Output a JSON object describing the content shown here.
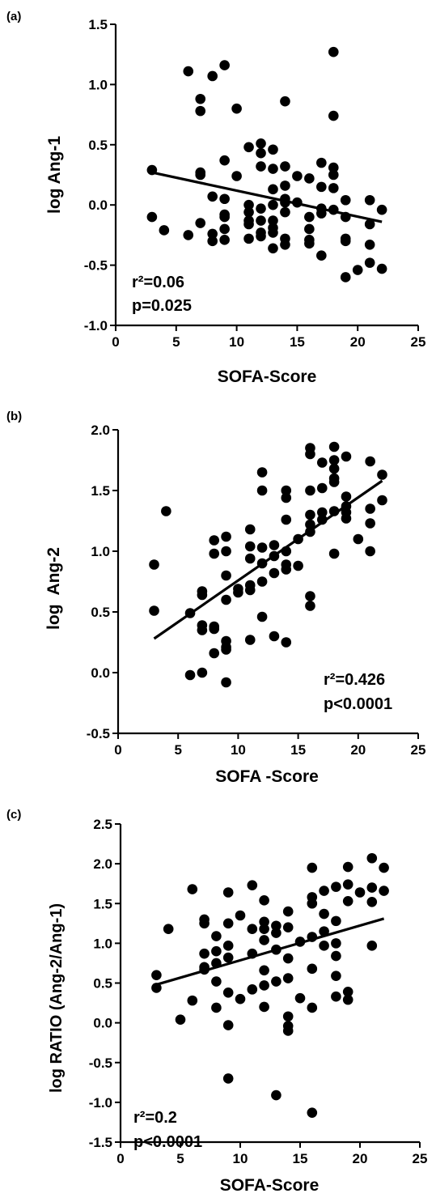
{
  "chart_data": [
    {
      "type": "scatter",
      "panel_label": "(a)",
      "xlabel": "SOFA-Score",
      "ylabel": "log Ang-1",
      "xlim": [
        0,
        25
      ],
      "ylim": [
        -1.0,
        1.5
      ],
      "xticks": [
        "0",
        "5",
        "10",
        "15",
        "20",
        "25"
      ],
      "yticks": [
        "-1.0",
        "-0.5",
        "0.0",
        "0.5",
        "1.0",
        "1.5"
      ],
      "annotations": [
        "r²=0.06",
        "p=0.025"
      ],
      "grid": false,
      "legend": "none",
      "regression": {
        "x": [
          3,
          22
        ],
        "y": [
          0.27,
          -0.14
        ]
      },
      "points": [
        [
          3,
          0.29
        ],
        [
          3,
          -0.1
        ],
        [
          4,
          -0.21
        ],
        [
          6,
          1.11
        ],
        [
          6,
          -0.25
        ],
        [
          7,
          0.88
        ],
        [
          7,
          0.78
        ],
        [
          7,
          0.27
        ],
        [
          7,
          0.25
        ],
        [
          7,
          -0.15
        ],
        [
          8,
          1.07
        ],
        [
          8,
          0.07
        ],
        [
          8,
          -0.24
        ],
        [
          8,
          -0.3
        ],
        [
          9,
          1.16
        ],
        [
          9,
          0.37
        ],
        [
          9,
          0.05
        ],
        [
          9,
          -0.08
        ],
        [
          9,
          -0.1
        ],
        [
          9,
          -0.2
        ],
        [
          9,
          -0.29
        ],
        [
          10,
          0.8
        ],
        [
          10,
          0.24
        ],
        [
          11,
          0.48
        ],
        [
          11,
          0.0
        ],
        [
          11,
          -0.06
        ],
        [
          11,
          -0.13
        ],
        [
          11,
          -0.16
        ],
        [
          11,
          -0.28
        ],
        [
          12,
          0.51
        ],
        [
          12,
          0.43
        ],
        [
          12,
          0.32
        ],
        [
          12,
          -0.03
        ],
        [
          12,
          -0.13
        ],
        [
          12,
          -0.23
        ],
        [
          12,
          -0.26
        ],
        [
          13,
          0.46
        ],
        [
          13,
          0.3
        ],
        [
          13,
          0.13
        ],
        [
          13,
          0.0
        ],
        [
          13,
          -0.13
        ],
        [
          13,
          -0.19
        ],
        [
          13,
          -0.23
        ],
        [
          13,
          -0.36
        ],
        [
          14,
          0.86
        ],
        [
          14,
          0.32
        ],
        [
          14,
          0.16
        ],
        [
          14,
          0.05
        ],
        [
          14,
          0.02
        ],
        [
          14,
          -0.06
        ],
        [
          14,
          -0.28
        ],
        [
          14,
          -0.33
        ],
        [
          15,
          0.24
        ],
        [
          15,
          0.02
        ],
        [
          16,
          0.22
        ],
        [
          16,
          -0.1
        ],
        [
          16,
          -0.2
        ],
        [
          16,
          -0.29
        ],
        [
          16,
          -0.32
        ],
        [
          17,
          0.35
        ],
        [
          17,
          0.15
        ],
        [
          17,
          -0.03
        ],
        [
          17,
          -0.07
        ],
        [
          17,
          -0.42
        ],
        [
          18,
          1.27
        ],
        [
          18,
          0.74
        ],
        [
          18,
          0.31
        ],
        [
          18,
          0.25
        ],
        [
          18,
          0.14
        ],
        [
          18,
          -0.04
        ],
        [
          19,
          0.04
        ],
        [
          19,
          -0.1
        ],
        [
          19,
          -0.28
        ],
        [
          19,
          -0.3
        ],
        [
          19,
          -0.6
        ],
        [
          20,
          -0.54
        ],
        [
          21,
          0.04
        ],
        [
          21,
          -0.16
        ],
        [
          21,
          -0.33
        ],
        [
          21,
          -0.48
        ],
        [
          22,
          -0.04
        ],
        [
          22,
          -0.53
        ]
      ]
    },
    {
      "type": "scatter",
      "panel_label": "(b)",
      "xlabel": "SOFA -Score",
      "ylabel": "log  Ang-2",
      "xlim": [
        0,
        25
      ],
      "ylim": [
        -0.5,
        2.0
      ],
      "xticks": [
        "0",
        "5",
        "10",
        "15",
        "20",
        "25"
      ],
      "yticks": [
        "-0.5",
        "0.0",
        "0.5",
        "1.0",
        "1.5",
        "2.0"
      ],
      "annotations": [
        "r²=0.426",
        "p<0.0001"
      ],
      "grid": false,
      "legend": "none",
      "regression": {
        "x": [
          3,
          22
        ],
        "y": [
          0.28,
          1.58
        ]
      },
      "points": [
        [
          3,
          0.89
        ],
        [
          3,
          0.51
        ],
        [
          4,
          1.33
        ],
        [
          6,
          0.49
        ],
        [
          6,
          -0.02
        ],
        [
          7,
          0.67
        ],
        [
          7,
          0.64
        ],
        [
          7,
          0.39
        ],
        [
          7,
          0.35
        ],
        [
          7,
          0.0
        ],
        [
          8,
          1.09
        ],
        [
          8,
          0.98
        ],
        [
          8,
          0.38
        ],
        [
          8,
          0.36
        ],
        [
          8,
          0.16
        ],
        [
          9,
          1.12
        ],
        [
          9,
          1.0
        ],
        [
          9,
          0.8
        ],
        [
          9,
          0.6
        ],
        [
          9,
          0.26
        ],
        [
          9,
          0.21
        ],
        [
          9,
          0.19
        ],
        [
          9,
          -0.08
        ],
        [
          10,
          0.69
        ],
        [
          10,
          0.66
        ],
        [
          11,
          1.18
        ],
        [
          11,
          1.04
        ],
        [
          11,
          0.94
        ],
        [
          11,
          0.72
        ],
        [
          11,
          0.68
        ],
        [
          11,
          0.27
        ],
        [
          12,
          1.65
        ],
        [
          12,
          1.5
        ],
        [
          12,
          1.03
        ],
        [
          12,
          0.9
        ],
        [
          12,
          0.75
        ],
        [
          12,
          0.46
        ],
        [
          13,
          1.05
        ],
        [
          13,
          0.96
        ],
        [
          13,
          0.82
        ],
        [
          13,
          0.3
        ],
        [
          14,
          1.5
        ],
        [
          14,
          1.44
        ],
        [
          14,
          1.26
        ],
        [
          14,
          1.0
        ],
        [
          14,
          0.89
        ],
        [
          14,
          0.85
        ],
        [
          14,
          0.25
        ],
        [
          15,
          1.1
        ],
        [
          15,
          0.88
        ],
        [
          16,
          1.85
        ],
        [
          16,
          1.8
        ],
        [
          16,
          1.5
        ],
        [
          16,
          1.3
        ],
        [
          16,
          1.22
        ],
        [
          16,
          1.16
        ],
        [
          16,
          0.63
        ],
        [
          16,
          0.55
        ],
        [
          17,
          1.73
        ],
        [
          17,
          1.52
        ],
        [
          17,
          1.32
        ],
        [
          17,
          1.26
        ],
        [
          18,
          1.86
        ],
        [
          18,
          1.75
        ],
        [
          18,
          1.68
        ],
        [
          18,
          1.6
        ],
        [
          18,
          1.57
        ],
        [
          18,
          1.33
        ],
        [
          18,
          0.98
        ],
        [
          19,
          1.78
        ],
        [
          19,
          1.45
        ],
        [
          19,
          1.37
        ],
        [
          19,
          1.32
        ],
        [
          19,
          1.27
        ],
        [
          20,
          1.1
        ],
        [
          21,
          1.74
        ],
        [
          21,
          1.35
        ],
        [
          21,
          1.23
        ],
        [
          21,
          1.0
        ],
        [
          22,
          1.63
        ],
        [
          22,
          1.42
        ]
      ]
    },
    {
      "type": "scatter",
      "panel_label": "(c)",
      "xlabel": "SOFA-Score",
      "ylabel": "log RATIO (Ang-2/Ang-1)",
      "xlim": [
        0,
        25
      ],
      "ylim": [
        -1.5,
        2.5
      ],
      "xticks": [
        "0",
        "5",
        "10",
        "15",
        "20",
        "25"
      ],
      "yticks": [
        "-1.5",
        "-1.0",
        "-0.5",
        "0.0",
        "0.5",
        "1.0",
        "1.5",
        "2.0",
        "2.5"
      ],
      "annotations": [
        "r²=0.2",
        "p<0.0001"
      ],
      "grid": false,
      "legend": "none",
      "regression": {
        "x": [
          3,
          22
        ],
        "y": [
          0.48,
          1.31
        ]
      },
      "points": [
        [
          3,
          0.6
        ],
        [
          3,
          0.44
        ],
        [
          4,
          1.18
        ],
        [
          5,
          0.04
        ],
        [
          6,
          1.68
        ],
        [
          6,
          0.28
        ],
        [
          7,
          1.3
        ],
        [
          7,
          1.25
        ],
        [
          7,
          0.87
        ],
        [
          7,
          0.7
        ],
        [
          7,
          0.67
        ],
        [
          8,
          1.09
        ],
        [
          8,
          0.9
        ],
        [
          8,
          0.75
        ],
        [
          8,
          0.52
        ],
        [
          8,
          0.19
        ],
        [
          9,
          1.64
        ],
        [
          9,
          1.25
        ],
        [
          9,
          0.97
        ],
        [
          9,
          0.82
        ],
        [
          9,
          0.38
        ],
        [
          9,
          -0.03
        ],
        [
          9,
          -0.7
        ],
        [
          10,
          1.35
        ],
        [
          10,
          0.3
        ],
        [
          11,
          1.73
        ],
        [
          11,
          1.18
        ],
        [
          11,
          0.87
        ],
        [
          11,
          0.42
        ],
        [
          12,
          1.54
        ],
        [
          12,
          1.27
        ],
        [
          12,
          1.18
        ],
        [
          12,
          1.04
        ],
        [
          12,
          0.66
        ],
        [
          12,
          0.47
        ],
        [
          12,
          0.2
        ],
        [
          13,
          1.22
        ],
        [
          13,
          1.13
        ],
        [
          13,
          0.92
        ],
        [
          13,
          0.52
        ],
        [
          13,
          -0.91
        ],
        [
          14,
          1.4
        ],
        [
          14,
          1.2
        ],
        [
          14,
          0.81
        ],
        [
          14,
          0.56
        ],
        [
          14,
          0.08
        ],
        [
          14,
          -0.04
        ],
        [
          14,
          -0.1
        ],
        [
          15,
          1.02
        ],
        [
          15,
          0.31
        ],
        [
          16,
          1.95
        ],
        [
          16,
          1.58
        ],
        [
          16,
          1.5
        ],
        [
          16,
          1.08
        ],
        [
          16,
          0.68
        ],
        [
          16,
          0.19
        ],
        [
          16,
          -1.13
        ],
        [
          17,
          1.66
        ],
        [
          17,
          1.37
        ],
        [
          17,
          1.15
        ],
        [
          17,
          0.97
        ],
        [
          18,
          1.71
        ],
        [
          18,
          1.28
        ],
        [
          18,
          1.0
        ],
        [
          18,
          0.84
        ],
        [
          18,
          0.59
        ],
        [
          18,
          0.33
        ],
        [
          19,
          1.96
        ],
        [
          19,
          1.74
        ],
        [
          19,
          1.53
        ],
        [
          19,
          0.39
        ],
        [
          19,
          0.29
        ],
        [
          20,
          1.64
        ],
        [
          21,
          2.07
        ],
        [
          21,
          1.7
        ],
        [
          21,
          1.52
        ],
        [
          21,
          0.97
        ],
        [
          22,
          1.95
        ],
        [
          22,
          1.66
        ]
      ]
    }
  ]
}
